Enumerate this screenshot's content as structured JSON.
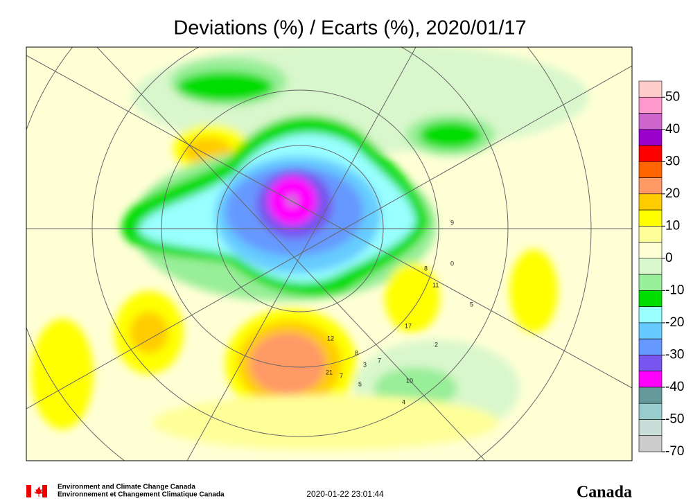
{
  "title": "Deviations (%) / Ecarts (%), 2020/01/17",
  "legend": {
    "labels": [
      50,
      40,
      30,
      20,
      10,
      0,
      -10,
      -20,
      -30,
      -40,
      -50,
      -70
    ],
    "colors": [
      "#ffcccc",
      "#ff99cc",
      "#cc66cc",
      "#9900cc",
      "#ff0000",
      "#ff6600",
      "#ff9966",
      "#ffcc00",
      "#ffff00",
      "#ffff99",
      "#ffffd5",
      "#d9f7cc",
      "#99ee99",
      "#00dd00",
      "#99ffff",
      "#66ccff",
      "#6699ff",
      "#7755ee",
      "#ff00ff",
      "#669999",
      "#99cccc",
      "#c8dcd8",
      "#cccccc"
    ]
  },
  "stations": [
    12,
    21,
    7,
    5,
    3,
    8,
    17,
    2,
    10,
    4,
    11,
    5,
    0,
    9,
    8,
    7
  ],
  "footer": {
    "agency_en": "Environment and Climate Change Canada",
    "agency_fr": "Environnement et Changement Climatique Canada",
    "timestamp": "2020-01-22 23:01:44",
    "wordmark": "Canada"
  }
}
